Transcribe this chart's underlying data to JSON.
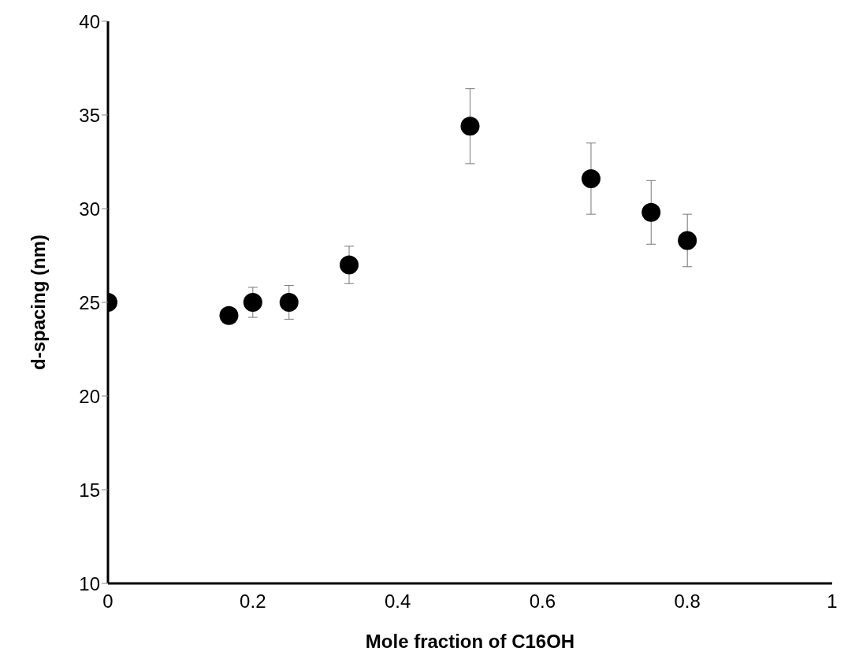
{
  "chart_data": {
    "type": "scatter",
    "xlabel": "Mole fraction of C16OH",
    "ylabel": "d-spacing  (nm)",
    "x": [
      0,
      0.167,
      0.2,
      0.25,
      0.333,
      0.5,
      0.667,
      0.75,
      0.8
    ],
    "values": [
      25.0,
      24.3,
      25.0,
      25.0,
      27.0,
      34.4,
      31.6,
      29.8,
      28.3
    ],
    "errors": [
      null,
      null,
      0.8,
      0.9,
      1.0,
      2.0,
      1.9,
      1.7,
      1.4
    ],
    "color": "#000000",
    "marker": "circle",
    "xlim": [
      0,
      1
    ],
    "xticks": [
      0,
      0.2,
      0.4,
      0.6,
      0.8,
      1
    ],
    "ylim": [
      10,
      40
    ],
    "yticks": [
      10,
      15,
      20,
      25,
      30,
      35,
      40
    ],
    "grid": false,
    "legend": false
  }
}
